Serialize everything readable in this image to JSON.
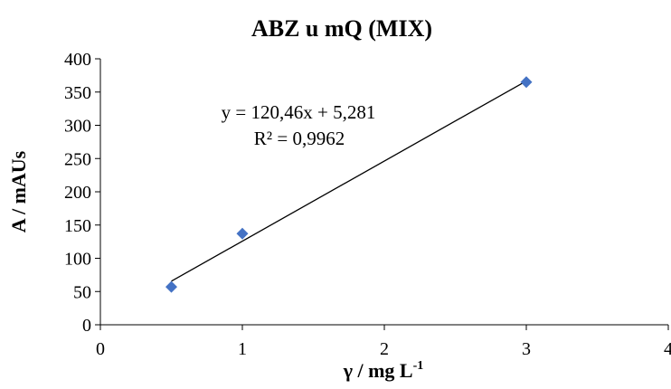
{
  "chart_data": {
    "type": "scatter",
    "title": "ABZ u mQ (MIX)",
    "xlabel": {
      "base": "γ / mg L",
      "sup": "-1"
    },
    "ylabel": "A / mAUs",
    "xlim": [
      0,
      4
    ],
    "ylim": [
      0,
      400
    ],
    "xticks": [
      "0",
      "1",
      "2",
      "3",
      "4"
    ],
    "yticks": [
      "0",
      "50",
      "100",
      "150",
      "200",
      "250",
      "300",
      "350",
      "400"
    ],
    "grid": false,
    "series": [
      {
        "marker": "diamond",
        "color": "#4472C4",
        "x": [
          0.5,
          1,
          3
        ],
        "y": [
          57,
          137,
          365
        ]
      }
    ],
    "trendline": {
      "type": "linear",
      "slope": 120.46,
      "intercept": 5.281,
      "x_range": [
        0.5,
        3
      ],
      "color": "#000000",
      "equation_label": "y = 120,46x + 5,281",
      "r2_label": "R² = 0,9962"
    }
  }
}
